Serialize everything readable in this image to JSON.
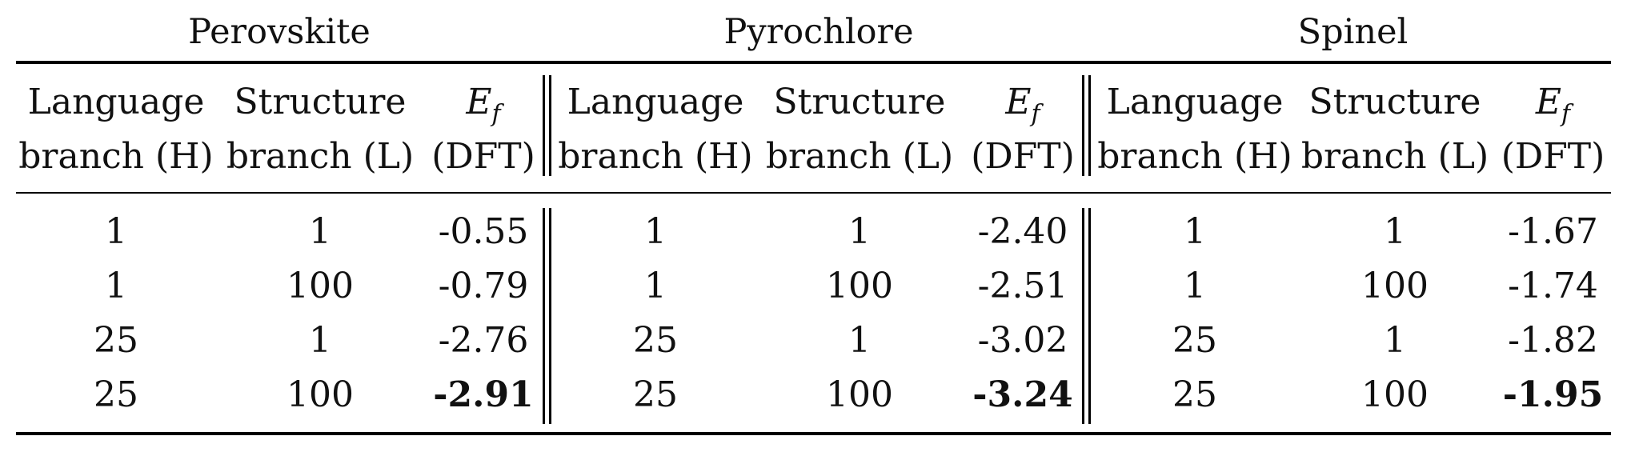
{
  "groups": [
    {
      "name": "Perovskite",
      "col_headers": [
        {
          "line1": "Language",
          "line2": "branch (H)"
        },
        {
          "line1": "Structure",
          "line2": "branch (L)"
        },
        {
          "line1": "E",
          "sub": "f",
          "line2": "(DFT)"
        }
      ],
      "rows": [
        {
          "h": "1",
          "l": "1",
          "ef": "-0.55",
          "bold": false
        },
        {
          "h": "1",
          "l": "100",
          "ef": "-0.79",
          "bold": false
        },
        {
          "h": "25",
          "l": "1",
          "ef": "-2.76",
          "bold": false
        },
        {
          "h": "25",
          "l": "100",
          "ef": "-2.91",
          "bold": true
        }
      ]
    },
    {
      "name": "Pyrochlore",
      "col_headers": [
        {
          "line1": "Language",
          "line2": "branch (H)"
        },
        {
          "line1": "Structure",
          "line2": "branch (L)"
        },
        {
          "line1": "E",
          "sub": "f",
          "line2": "(DFT)"
        }
      ],
      "rows": [
        {
          "h": "1",
          "l": "1",
          "ef": "-2.40",
          "bold": false
        },
        {
          "h": "1",
          "l": "100",
          "ef": "-2.51",
          "bold": false
        },
        {
          "h": "25",
          "l": "1",
          "ef": "-3.02",
          "bold": false
        },
        {
          "h": "25",
          "l": "100",
          "ef": "-3.24",
          "bold": true
        }
      ]
    },
    {
      "name": "Spinel",
      "col_headers": [
        {
          "line1": "Language",
          "line2": "branch (H)"
        },
        {
          "line1": "Structure",
          "line2": "branch (L)"
        },
        {
          "line1": "E",
          "sub": "f",
          "line2": "(DFT)"
        }
      ],
      "rows": [
        {
          "h": "1",
          "l": "1",
          "ef": "-1.67",
          "bold": false
        },
        {
          "h": "1",
          "l": "100",
          "ef": "-1.74",
          "bold": false
        },
        {
          "h": "25",
          "l": "1",
          "ef": "-1.82",
          "bold": false
        },
        {
          "h": "25",
          "l": "100",
          "ef": "-1.95",
          "bold": true
        }
      ]
    }
  ]
}
